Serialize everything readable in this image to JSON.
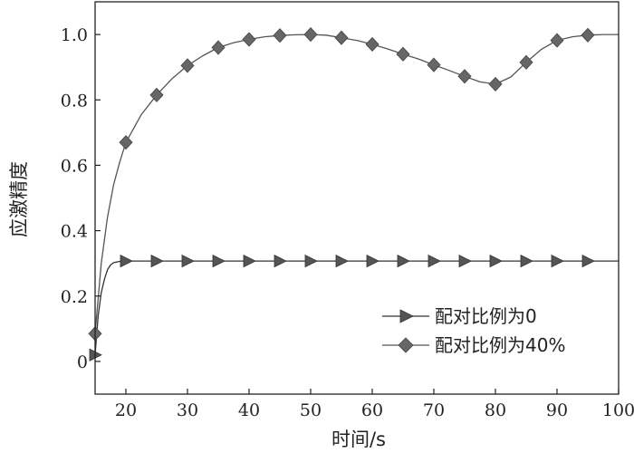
{
  "chart_data": {
    "type": "line",
    "xlabel": "时间/s",
    "ylabel": "应激精度",
    "xlim": [
      15,
      100
    ],
    "ylim": [
      -0.1,
      1.1
    ],
    "x_ticks": [
      {
        "v": 20,
        "label": "20"
      },
      {
        "v": 30,
        "label": "30"
      },
      {
        "v": 40,
        "label": "40"
      },
      {
        "v": 50,
        "label": "50"
      },
      {
        "v": 60,
        "label": "60"
      },
      {
        "v": 70,
        "label": "70"
      },
      {
        "v": 80,
        "label": "80"
      },
      {
        "v": 90,
        "label": "90"
      },
      {
        "v": 100,
        "label": "100"
      }
    ],
    "y_ticks": [
      {
        "v": 0,
        "label": "0"
      },
      {
        "v": 0.2,
        "label": "0.2"
      },
      {
        "v": 0.4,
        "label": "0.4"
      },
      {
        "v": 0.6,
        "label": "0.6"
      },
      {
        "v": 0.8,
        "label": "0.8"
      },
      {
        "v": 1.0,
        "label": "1.0"
      }
    ],
    "legend_position": "bottom-right",
    "series": [
      {
        "name": "配对比例为0",
        "marker": "triangle-right",
        "color": "#333333",
        "curve_x": [
          15,
          15.5,
          16,
          16.5,
          17,
          17.5,
          18,
          19,
          20,
          25,
          30,
          40,
          50,
          60,
          70,
          80,
          90,
          100
        ],
        "curve_y": [
          0.02,
          0.14,
          0.21,
          0.25,
          0.28,
          0.295,
          0.302,
          0.306,
          0.307,
          0.307,
          0.307,
          0.307,
          0.307,
          0.307,
          0.307,
          0.307,
          0.307,
          0.307
        ],
        "marker_x": [
          15,
          20,
          25,
          30,
          35,
          40,
          45,
          50,
          55,
          60,
          65,
          70,
          75,
          80,
          85,
          90,
          95
        ],
        "marker_y": [
          0.02,
          0.307,
          0.307,
          0.307,
          0.307,
          0.307,
          0.307,
          0.307,
          0.307,
          0.307,
          0.307,
          0.307,
          0.307,
          0.307,
          0.307,
          0.307,
          0.307
        ]
      },
      {
        "name": "配对比例为40%",
        "marker": "diamond",
        "color": "#555555",
        "curve_x": [
          15,
          16,
          17,
          18,
          19,
          20,
          22.5,
          25,
          27.5,
          30,
          32.5,
          35,
          37.5,
          40,
          42.5,
          45,
          47.5,
          50,
          52.5,
          55,
          57.5,
          60,
          62.5,
          65,
          67.5,
          70,
          72.5,
          75,
          77.5,
          80,
          82.5,
          85,
          87.5,
          90,
          92.5,
          95,
          97.5,
          100
        ],
        "curve_y": [
          0.085,
          0.3,
          0.44,
          0.54,
          0.61,
          0.67,
          0.755,
          0.815,
          0.865,
          0.905,
          0.935,
          0.96,
          0.975,
          0.985,
          0.993,
          0.997,
          0.999,
          1.0,
          0.998,
          0.99,
          0.982,
          0.97,
          0.956,
          0.94,
          0.925,
          0.907,
          0.89,
          0.872,
          0.855,
          0.848,
          0.87,
          0.915,
          0.955,
          0.982,
          0.993,
          0.998,
          1.0,
          1.0
        ],
        "marker_x": [
          15,
          20,
          25,
          30,
          35,
          40,
          45,
          50,
          55,
          60,
          65,
          70,
          75,
          80,
          85,
          90,
          95
        ],
        "marker_y": [
          0.085,
          0.67,
          0.815,
          0.905,
          0.96,
          0.985,
          0.997,
          1.0,
          0.99,
          0.97,
          0.94,
          0.907,
          0.872,
          0.848,
          0.915,
          0.982,
          0.998
        ]
      }
    ]
  }
}
